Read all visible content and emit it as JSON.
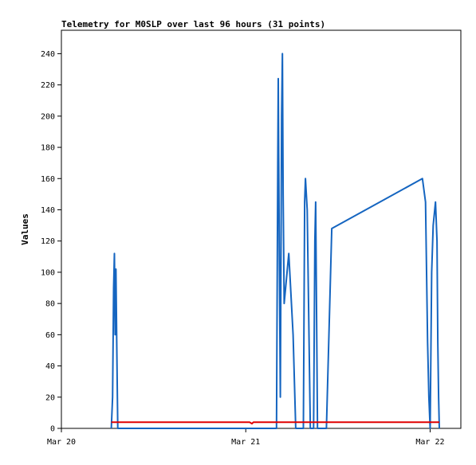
{
  "chart_data": {
    "type": "line",
    "title": "Telemetry for M0SLP over last 96 hours (31 points)",
    "xlabel": "",
    "ylabel": "Values",
    "xlim": [
      "2024-03-20T00:00",
      "2024-03-22T04:00"
    ],
    "ylim": [
      0,
      255
    ],
    "x_tick_labels": [
      "Mar 20",
      "Mar 21",
      "Mar 22"
    ],
    "x_tick_dates": [
      "2024-03-20T00:00",
      "2024-03-21T00:00",
      "2024-03-22T00:00"
    ],
    "y_ticks": [
      0,
      20,
      40,
      60,
      80,
      100,
      120,
      140,
      160,
      180,
      200,
      220,
      240
    ],
    "grid": false,
    "legend": "none",
    "colors": {
      "blue_series": "#1565c0",
      "red_series": "#e00000",
      "axis": "#000000"
    },
    "series": [
      {
        "color": "#1565c0",
        "points": [
          [
            "2024-03-20T06:30",
            0
          ],
          [
            "2024-03-20T06:40",
            20
          ],
          [
            "2024-03-20T06:48",
            90
          ],
          [
            "2024-03-20T06:54",
            112
          ],
          [
            "2024-03-20T07:00",
            60
          ],
          [
            "2024-03-20T07:06",
            102
          ],
          [
            "2024-03-20T07:12",
            55
          ],
          [
            "2024-03-20T07:20",
            0
          ],
          [
            "2024-03-21T04:00",
            0
          ],
          [
            "2024-03-21T04:10",
            170
          ],
          [
            "2024-03-21T04:14",
            224
          ],
          [
            "2024-03-21T04:22",
            110
          ],
          [
            "2024-03-21T04:30",
            20
          ],
          [
            "2024-03-21T04:40",
            200
          ],
          [
            "2024-03-21T04:46",
            240
          ],
          [
            "2024-03-21T04:52",
            150
          ],
          [
            "2024-03-21T05:00",
            80
          ],
          [
            "2024-03-21T05:36",
            112
          ],
          [
            "2024-03-21T06:10",
            60
          ],
          [
            "2024-03-21T06:30",
            0
          ],
          [
            "2024-03-21T07:30",
            0
          ],
          [
            "2024-03-21T07:40",
            145
          ],
          [
            "2024-03-21T07:46",
            160
          ],
          [
            "2024-03-21T08:00",
            140
          ],
          [
            "2024-03-21T08:24",
            0
          ],
          [
            "2024-03-21T08:50",
            0
          ],
          [
            "2024-03-21T09:00",
            120
          ],
          [
            "2024-03-21T09:06",
            145
          ],
          [
            "2024-03-21T09:20",
            0
          ],
          [
            "2024-03-21T10:30",
            0
          ],
          [
            "2024-03-21T11:12",
            128
          ],
          [
            "2024-03-21T23:00",
            160
          ],
          [
            "2024-03-21T23:24",
            145
          ],
          [
            "2024-03-21T23:40",
            55
          ],
          [
            "2024-03-21T23:50",
            20
          ],
          [
            "2024-03-22T00:00",
            0
          ],
          [
            "2024-03-22T00:12",
            100
          ],
          [
            "2024-03-22T00:24",
            130
          ],
          [
            "2024-03-22T00:42",
            145
          ],
          [
            "2024-03-22T00:54",
            120
          ],
          [
            "2024-03-22T01:00",
            55
          ],
          [
            "2024-03-22T01:06",
            20
          ],
          [
            "2024-03-22T01:12",
            0
          ]
        ]
      },
      {
        "color": "#e00000",
        "points": [
          [
            "2024-03-20T06:30",
            4
          ],
          [
            "2024-03-21T00:30",
            4
          ],
          [
            "2024-03-21T00:48",
            3
          ],
          [
            "2024-03-21T01:00",
            4
          ],
          [
            "2024-03-22T01:12",
            4
          ]
        ]
      }
    ]
  }
}
